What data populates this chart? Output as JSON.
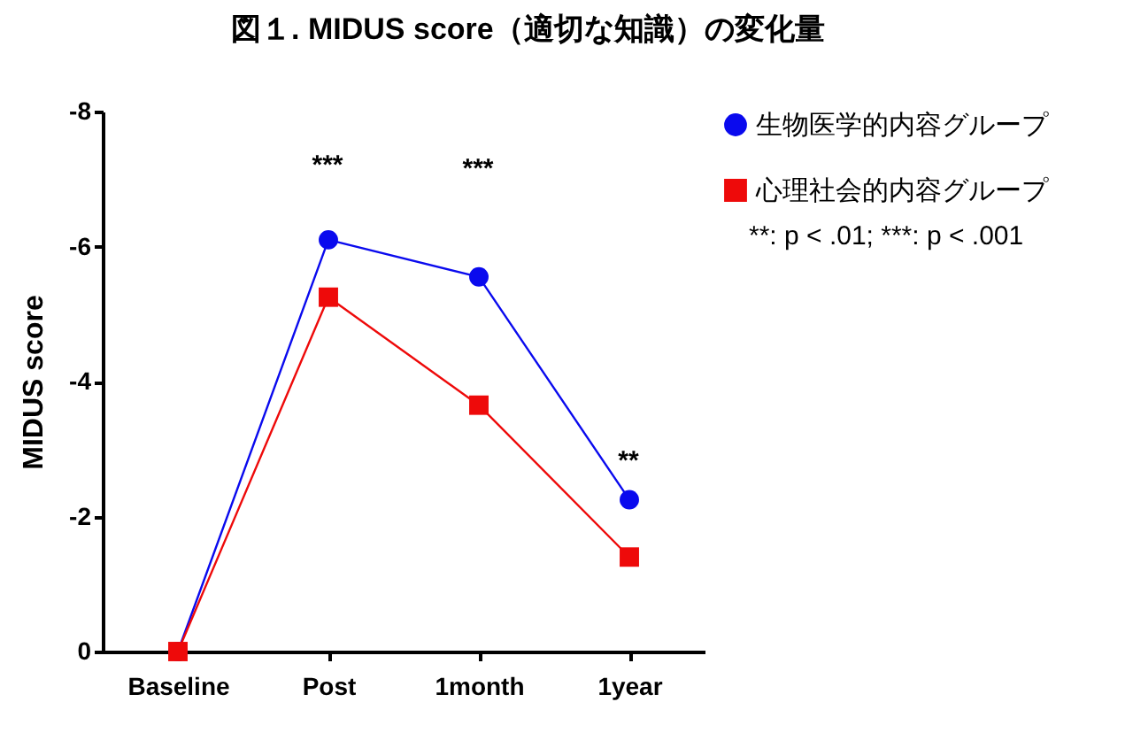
{
  "chart_data": {
    "type": "line",
    "title": "図１. MIDUS score（適切な知識）の変化量",
    "ylabel": "MIDUS score",
    "categories": [
      "Baseline",
      "Post",
      "1month",
      "1year"
    ],
    "series": [
      {
        "name": "生物医学的内容グループ",
        "color": "#0a0aee",
        "marker": "circle",
        "values": [
          0,
          -6.1,
          -5.55,
          -2.25
        ]
      },
      {
        "name": "心理社会的内容グループ",
        "color": "#ee0a0a",
        "marker": "square",
        "values": [
          0,
          -5.25,
          -3.65,
          -1.4
        ]
      }
    ],
    "ylim": [
      0,
      -8
    ],
    "yticks": [
      -8,
      -6,
      -4,
      -2,
      0
    ],
    "grid": false,
    "legend": "top right",
    "annotations": [
      "***",
      "***",
      "**",
      "**: p < .01; ***: p < .001"
    ]
  }
}
